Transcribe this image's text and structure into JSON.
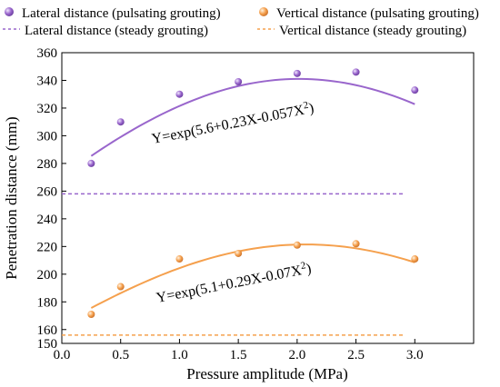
{
  "chart_data": {
    "type": "scatter",
    "xlabel": "Pressure amplitude (MPa)",
    "ylabel": "Penetration distance (mm)",
    "xlim": [
      0,
      3.5
    ],
    "ylim": [
      150,
      360
    ],
    "xticks": [
      "0.0",
      "0.5",
      "1.0",
      "1.5",
      "2.0",
      "2.5",
      "3.0"
    ],
    "xtick_values": [
      0,
      0.5,
      1.0,
      1.5,
      2.0,
      2.5,
      3.0
    ],
    "yticks": [
      "150",
      "160",
      "180",
      "200",
      "220",
      "240",
      "260",
      "280",
      "300",
      "320",
      "340",
      "360"
    ],
    "ytick_values": [
      150,
      160,
      180,
      200,
      220,
      240,
      260,
      280,
      300,
      320,
      340,
      360
    ],
    "grid": false,
    "legend_position": "top",
    "series": [
      {
        "name": "Lateral  distance (pulsating grouting)",
        "kind": "points",
        "color": "#9966cc",
        "x": [
          0.25,
          0.5,
          1.0,
          1.5,
          2.0,
          2.5,
          3.0
        ],
        "y": [
          280,
          310,
          330,
          339,
          345,
          346,
          333
        ]
      },
      {
        "name": "Vertical  distance (pulsating grouting)",
        "kind": "points",
        "color": "#f5a04d",
        "x": [
          0.25,
          0.5,
          1.0,
          1.5,
          2.0,
          2.5,
          3.0
        ],
        "y": [
          171,
          191,
          211,
          215,
          221,
          222,
          211
        ]
      },
      {
        "name": "Lateral  distance (steady grouting)",
        "kind": "hline",
        "color": "#9966cc",
        "x_range": [
          0,
          2.9
        ],
        "y": 258
      },
      {
        "name": "Vertical  distance (steady grouting)",
        "kind": "hline",
        "color": "#f5a04d",
        "x_range": [
          0,
          2.9
        ],
        "y": 156
      }
    ],
    "fits": [
      {
        "color": "#9966cc",
        "a": 5.6,
        "b": 0.23,
        "c": -0.057,
        "x_range": [
          0.25,
          3.0
        ],
        "label_prefix": "Y=exp(5.6+0.23X-0.057X",
        "label_sup": "2",
        "label_suffix": ")"
      },
      {
        "color": "#f5a04d",
        "a": 5.1,
        "b": 0.29,
        "c": -0.07,
        "x_range": [
          0.25,
          3.0
        ],
        "label_prefix": "Y=exp(5.1+0.29X-0.07X",
        "label_sup": "2",
        "label_suffix": ")"
      }
    ]
  }
}
